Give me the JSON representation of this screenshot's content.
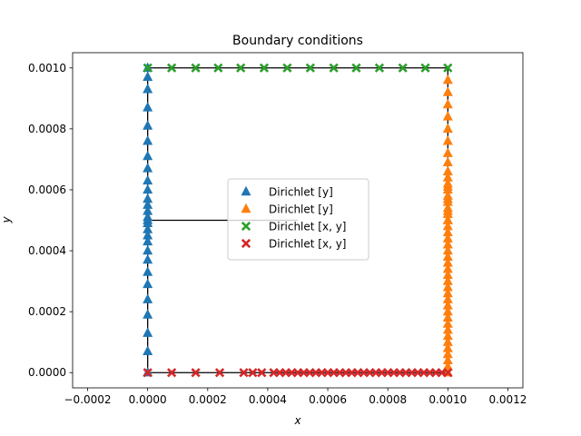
{
  "chart_data": {
    "type": "scatter",
    "title": "Boundary conditions",
    "xlabel": "x",
    "ylabel": "y",
    "xlim": [
      -0.00025,
      0.00125
    ],
    "ylim": [
      -5e-05,
      0.00105
    ],
    "xticks": [
      -0.0002,
      0,
      0.0002,
      0.0004,
      0.0006,
      0.0008,
      0.001,
      0.0012
    ],
    "xtick_labels": [
      "−0.0002",
      "0.0000",
      "0.0002",
      "0.0004",
      "0.0006",
      "0.0008",
      "0.0010",
      "0.0012"
    ],
    "yticks": [
      0,
      0.0002,
      0.0004,
      0.0006,
      0.0008,
      0.001
    ],
    "ytick_labels": [
      "0.0000",
      "0.0002",
      "0.0004",
      "0.0006",
      "0.0008",
      "0.0010"
    ],
    "grid": false,
    "legend_position": "center",
    "geometry_lines": [
      {
        "x": [
          0,
          0.001,
          0.001,
          0,
          0
        ],
        "y": [
          0,
          0,
          0.001,
          0.001,
          0
        ],
        "color": "#000000"
      },
      {
        "x": [
          0,
          0.0005
        ],
        "y": [
          0.0005,
          0.0005
        ],
        "color": "#000000"
      }
    ],
    "series": [
      {
        "name": "Dirichlet  [y]",
        "marker": "triangle",
        "color": "#1f77b4",
        "x": [
          0,
          0,
          0,
          0,
          0,
          0,
          0,
          0,
          0,
          0,
          0,
          0,
          0,
          0,
          0,
          0,
          0,
          0,
          0,
          0,
          0,
          0,
          0,
          0,
          0,
          0,
          0,
          0
        ],
        "y": [
          0,
          7e-05,
          0.00013,
          0.00019,
          0.00024,
          0.00029,
          0.00033,
          0.00037,
          0.0004,
          0.00043,
          0.00045,
          0.00047,
          0.00049,
          0.0005,
          0.00051,
          0.00053,
          0.00055,
          0.00057,
          0.0006,
          0.00063,
          0.00067,
          0.00071,
          0.00076,
          0.00081,
          0.00087,
          0.00093,
          0.00097,
          0.001
        ]
      },
      {
        "name": "Dirichlet  [y]",
        "marker": "triangle",
        "color": "#ff7f0e",
        "x": [
          0.001,
          0.001,
          0.001,
          0.001,
          0.001,
          0.001,
          0.001,
          0.001,
          0.001,
          0.001,
          0.001,
          0.001,
          0.001,
          0.001,
          0.001,
          0.001,
          0.001,
          0.001,
          0.001,
          0.001,
          0.001,
          0.001,
          0.001,
          0.001,
          0.001,
          0.001,
          0.001,
          0.001,
          0.001,
          0.001,
          0.001,
          0.001,
          0.001,
          0.001,
          0.001,
          0.001,
          0.001,
          0.001,
          0.001,
          0.001,
          0.001,
          0.001,
          0.001,
          0.001,
          0.001,
          0.001
        ],
        "y": [
          0,
          2e-05,
          4e-05,
          6e-05,
          8e-05,
          0.0001,
          0.00012,
          0.00014,
          0.00016,
          0.00018,
          0.0002,
          0.00022,
          0.00024,
          0.00026,
          0.00028,
          0.0003,
          0.00032,
          0.00034,
          0.00036,
          0.00038,
          0.0004,
          0.00042,
          0.00044,
          0.00046,
          0.00048,
          0.0005,
          0.00052,
          0.00054,
          0.00056,
          0.00058,
          0.0006,
          0.00062,
          0.00064,
          0.00066,
          0.00069,
          0.00072,
          0.00076,
          0.0008,
          0.00084,
          0.00088,
          0.00092,
          0.00096,
          0.0005,
          0.00053,
          0.00057,
          0.00061
        ]
      },
      {
        "name": "Dirichlet  [x, y]",
        "marker": "x",
        "color": "#2ca02c",
        "x": [
          0,
          8e-05,
          0.00016,
          0.000235,
          0.00031,
          0.000388,
          0.000465,
          0.000542,
          0.00062,
          0.000695,
          0.000772,
          0.00085,
          0.000925,
          0.001
        ],
        "y": [
          0.001,
          0.001,
          0.001,
          0.001,
          0.001,
          0.001,
          0.001,
          0.001,
          0.001,
          0.001,
          0.001,
          0.001,
          0.001,
          0.001
        ]
      },
      {
        "name": "Dirichlet  [x, y]",
        "marker": "x",
        "color": "#d62728",
        "x": [
          0,
          8e-05,
          0.00016,
          0.00024,
          0.00032,
          0.00038,
          0.00042,
          0.00046,
          0.00048,
          0.0005,
          0.00052,
          0.00054,
          0.00056,
          0.00058,
          0.0006,
          0.00062,
          0.00064,
          0.00066,
          0.00068,
          0.0007,
          0.00072,
          0.00074,
          0.00076,
          0.00078,
          0.0008,
          0.00082,
          0.00084,
          0.00086,
          0.00088,
          0.0009,
          0.00092,
          0.00094,
          0.00096,
          0.00098,
          0.001,
          0.00035,
          0.00044
        ],
        "y": [
          0,
          0,
          0,
          0,
          0,
          0,
          0,
          0,
          0,
          0,
          0,
          0,
          0,
          0,
          0,
          0,
          0,
          0,
          0,
          0,
          0,
          0,
          0,
          0,
          0,
          0,
          0,
          0,
          0,
          0,
          0,
          0,
          0,
          0,
          0,
          0,
          0
        ]
      }
    ]
  }
}
